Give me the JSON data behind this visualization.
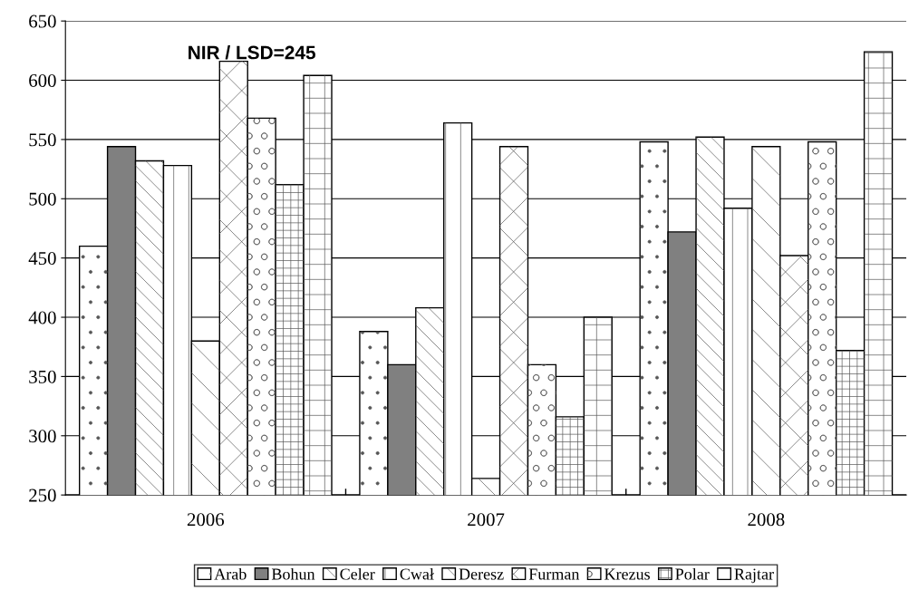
{
  "chart_data": {
    "type": "bar",
    "categories": [
      "2006",
      "2007",
      "2008"
    ],
    "series": [
      {
        "name": "Arab",
        "color": "#ffffff",
        "values": [
          460,
          388,
          548
        ]
      },
      {
        "name": "Bohun",
        "color": "#808080",
        "values": [
          544,
          360,
          472
        ]
      },
      {
        "name": "Celer",
        "color": "#ffffff",
        "values": [
          532,
          408,
          552
        ]
      },
      {
        "name": "Cwał",
        "color": "#ffffff",
        "values": [
          528,
          564,
          492
        ]
      },
      {
        "name": "Deresz",
        "color": "#ffffff",
        "values": [
          380,
          264,
          544
        ]
      },
      {
        "name": "Furman",
        "color": "#ffffff",
        "values": [
          616,
          544,
          452
        ]
      },
      {
        "name": "Krezus",
        "color": "#ffffff",
        "values": [
          568,
          360,
          548
        ]
      },
      {
        "name": "Polar",
        "color": "#ffffff",
        "values": [
          512,
          316,
          372
        ]
      },
      {
        "name": "Rajtar",
        "color": "#ffffff",
        "values": [
          604,
          400,
          624
        ]
      }
    ],
    "ylim": [
      250,
      650
    ],
    "yticks": [
      250,
      300,
      350,
      400,
      450,
      500,
      550,
      600,
      650
    ],
    "grid": "y",
    "legend": "bottom",
    "annotations": [
      "NIR / LSD=245"
    ]
  }
}
